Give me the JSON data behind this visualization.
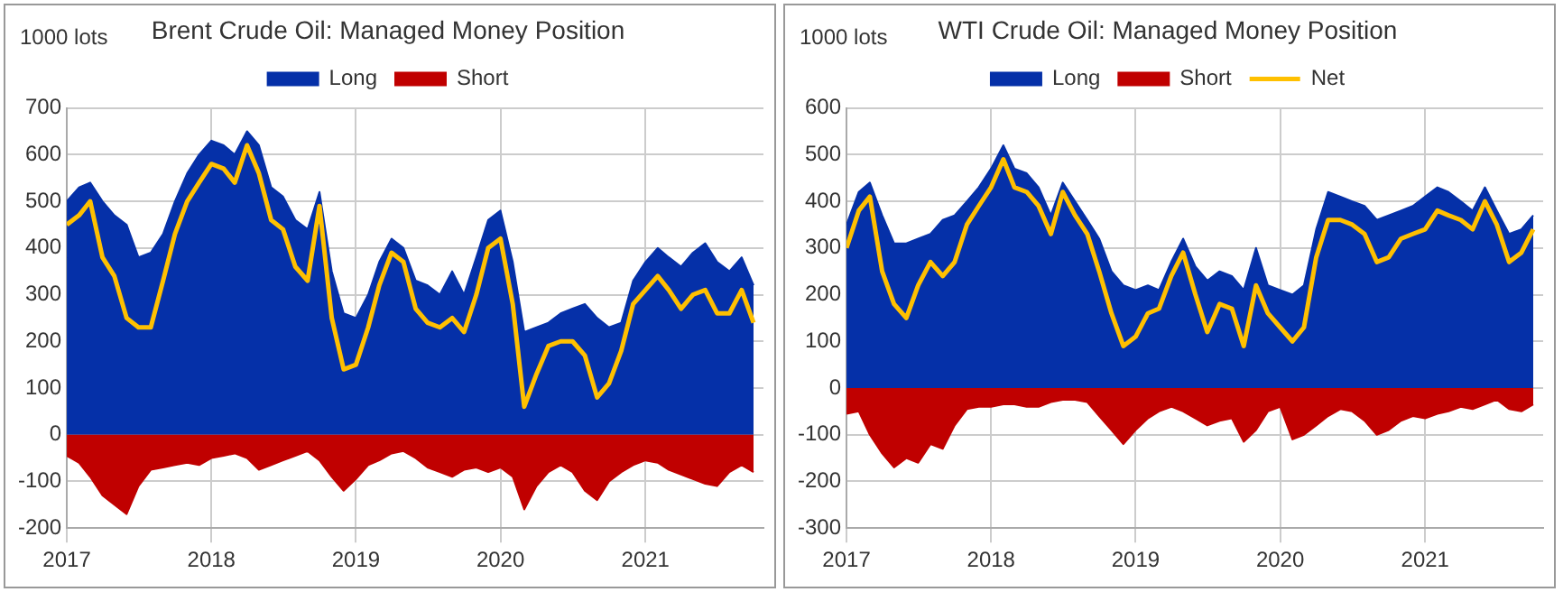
{
  "chart_data": [
    {
      "type": "area",
      "title": "Brent Crude Oil: Managed Money Position",
      "ylabel": "1000 lots",
      "x": [
        "2017-01",
        "2017-02",
        "2017-03",
        "2017-04",
        "2017-05",
        "2017-06",
        "2017-07",
        "2017-08",
        "2017-09",
        "2017-10",
        "2017-11",
        "2017-12",
        "2018-01",
        "2018-02",
        "2018-03",
        "2018-04",
        "2018-05",
        "2018-06",
        "2018-07",
        "2018-08",
        "2018-09",
        "2018-10",
        "2018-11",
        "2018-12",
        "2019-01",
        "2019-02",
        "2019-03",
        "2019-04",
        "2019-05",
        "2019-06",
        "2019-07",
        "2019-08",
        "2019-09",
        "2019-10",
        "2019-11",
        "2019-12",
        "2020-01",
        "2020-02",
        "2020-03",
        "2020-04",
        "2020-05",
        "2020-06",
        "2020-07",
        "2020-08",
        "2020-09",
        "2020-10",
        "2020-11",
        "2020-12",
        "2021-01",
        "2021-02",
        "2021-03",
        "2021-04",
        "2021-05",
        "2021-06",
        "2021-07",
        "2021-08",
        "2021-09",
        "2021-10"
      ],
      "series": [
        {
          "name": "Long",
          "color": "#0530a8",
          "values": [
            500,
            530,
            540,
            500,
            470,
            450,
            380,
            390,
            430,
            500,
            560,
            600,
            630,
            620,
            600,
            650,
            620,
            530,
            510,
            460,
            440,
            520,
            350,
            260,
            250,
            300,
            370,
            420,
            400,
            330,
            320,
            300,
            350,
            300,
            380,
            460,
            480,
            370,
            220,
            230,
            240,
            260,
            270,
            280,
            250,
            230,
            240,
            330,
            370,
            400,
            380,
            360,
            390,
            410,
            370,
            350,
            380,
            320
          ]
        },
        {
          "name": "Short",
          "color": "#c00000",
          "values": [
            -45,
            -60,
            -90,
            -130,
            -150,
            -170,
            -110,
            -75,
            -70,
            -65,
            -60,
            -65,
            -50,
            -45,
            -40,
            -50,
            -75,
            -65,
            -55,
            -45,
            -35,
            -55,
            -90,
            -120,
            -95,
            -65,
            -55,
            -40,
            -35,
            -50,
            -70,
            -80,
            -90,
            -75,
            -70,
            -80,
            -70,
            -90,
            -160,
            -110,
            -80,
            -65,
            -80,
            -120,
            -140,
            -100,
            -80,
            -65,
            -55,
            -60,
            -75,
            -85,
            -95,
            -105,
            -110,
            -80,
            -65,
            -80
          ]
        },
        {
          "type": "line",
          "color": "#ffc000",
          "values": [
            450,
            470,
            500,
            380,
            340,
            250,
            230,
            230,
            330,
            430,
            500,
            540,
            580,
            570,
            540,
            620,
            560,
            460,
            440,
            360,
            330,
            490,
            250,
            140,
            150,
            230,
            320,
            390,
            370,
            270,
            240,
            230,
            250,
            220,
            300,
            400,
            420,
            280,
            60,
            130,
            190,
            200,
            200,
            170,
            80,
            110,
            180,
            280,
            310,
            340,
            310,
            270,
            300,
            310,
            260,
            260,
            310,
            240
          ]
        }
      ],
      "xlim": [
        "2017-01",
        "2021-10-26"
      ],
      "xticks": [
        "2017",
        "2018",
        "2019",
        "2020",
        "2021"
      ],
      "ylim": [
        -200,
        700
      ],
      "yticks": [
        -200,
        -100,
        0,
        100,
        200,
        300,
        400,
        500,
        600,
        700
      ],
      "grid": true,
      "legend": "top",
      "line_style": "solid",
      "marker": "none"
    },
    {
      "type": "area",
      "title": "WTI Crude Oil: Managed Money Position",
      "ylabel": "1000 lots",
      "x": [
        "2017-01",
        "2017-02",
        "2017-03",
        "2017-04",
        "2017-05",
        "2017-06",
        "2017-07",
        "2017-08",
        "2017-09",
        "2017-10",
        "2017-11",
        "2017-12",
        "2018-01",
        "2018-02",
        "2018-03",
        "2018-04",
        "2018-05",
        "2018-06",
        "2018-07",
        "2018-08",
        "2018-09",
        "2018-10",
        "2018-11",
        "2018-12",
        "2019-01",
        "2019-02",
        "2019-03",
        "2019-04",
        "2019-05",
        "2019-06",
        "2019-07",
        "2019-08",
        "2019-09",
        "2019-10",
        "2019-11",
        "2019-12",
        "2020-01",
        "2020-02",
        "2020-03",
        "2020-04",
        "2020-05",
        "2020-06",
        "2020-07",
        "2020-08",
        "2020-09",
        "2020-10",
        "2020-11",
        "2020-12",
        "2021-01",
        "2021-02",
        "2021-03",
        "2021-04",
        "2021-05",
        "2021-06",
        "2021-07",
        "2021-08",
        "2021-09",
        "2021-10"
      ],
      "series": [
        {
          "name": "Long",
          "color": "#0530a8",
          "values": [
            350,
            420,
            440,
            370,
            310,
            310,
            320,
            330,
            360,
            370,
            400,
            430,
            470,
            520,
            470,
            460,
            430,
            370,
            440,
            400,
            360,
            320,
            250,
            220,
            210,
            220,
            210,
            270,
            320,
            260,
            230,
            250,
            240,
            210,
            300,
            220,
            210,
            200,
            220,
            340,
            420,
            410,
            400,
            390,
            360,
            370,
            380,
            390,
            410,
            430,
            420,
            400,
            380,
            430,
            380,
            330,
            340,
            370
          ]
        },
        {
          "name": "Short",
          "color": "#c00000",
          "values": [
            -55,
            -50,
            -100,
            -140,
            -170,
            -150,
            -160,
            -120,
            -130,
            -80,
            -45,
            -40,
            -40,
            -35,
            -35,
            -40,
            -40,
            -30,
            -25,
            -25,
            -30,
            -60,
            -90,
            -120,
            -90,
            -65,
            -50,
            -40,
            -50,
            -65,
            -80,
            -70,
            -65,
            -115,
            -90,
            -50,
            -40,
            -110,
            -100,
            -80,
            -60,
            -45,
            -50,
            -70,
            -100,
            -90,
            -70,
            -60,
            -65,
            -55,
            -50,
            -40,
            -45,
            -35,
            -25,
            -45,
            -50,
            -35
          ]
        },
        {
          "name": "Net",
          "type": "line",
          "color": "#ffc000",
          "values": [
            300,
            380,
            410,
            250,
            180,
            150,
            220,
            270,
            240,
            270,
            350,
            390,
            430,
            490,
            430,
            420,
            390,
            330,
            420,
            370,
            330,
            250,
            160,
            90,
            110,
            160,
            170,
            240,
            290,
            200,
            120,
            180,
            170,
            90,
            220,
            160,
            130,
            100,
            130,
            280,
            360,
            360,
            350,
            330,
            270,
            280,
            320,
            330,
            340,
            380,
            370,
            360,
            340,
            400,
            350,
            270,
            290,
            340
          ]
        }
      ],
      "xlim": [
        "2017-01",
        "2021-10-26"
      ],
      "xticks": [
        "2017",
        "2018",
        "2019",
        "2020",
        "2021"
      ],
      "ylim": [
        -300,
        600
      ],
      "yticks": [
        -300,
        -200,
        -100,
        0,
        100,
        200,
        300,
        400,
        500,
        600
      ],
      "grid": true,
      "legend": "top",
      "line_style": "solid",
      "marker": "none"
    }
  ]
}
